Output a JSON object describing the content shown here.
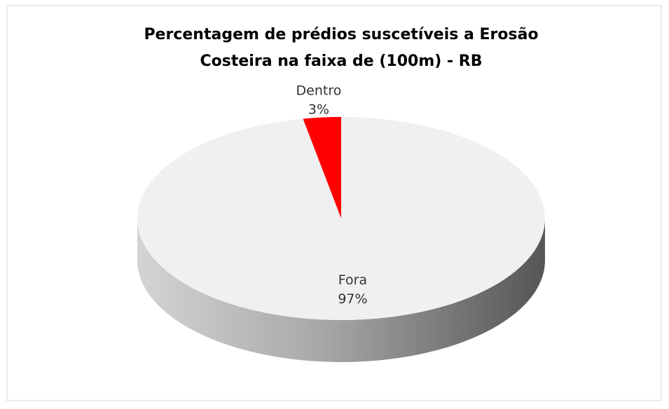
{
  "chart_data": {
    "type": "pie3d",
    "title": [
      "Percentagem  de prédios suscetíveis a  Erosão",
      "Costeira na faixa de (100m) - RB"
    ],
    "categories": [
      "Dentro",
      "Fora"
    ],
    "values": [
      3,
      97
    ],
    "value_labels": [
      "3%",
      "97%"
    ],
    "colors": [
      "#ff0000",
      "#f0f0f0"
    ]
  }
}
